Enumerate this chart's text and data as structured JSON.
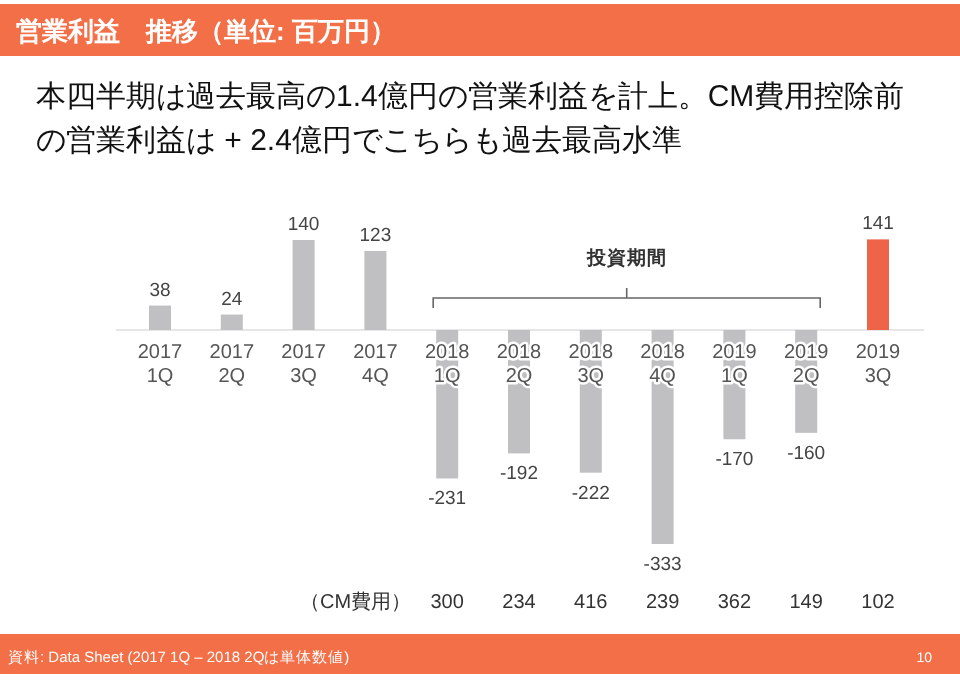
{
  "chart_data": {
    "type": "bar",
    "title": "営業利益　推移（単位: 百万円）",
    "subtitle": "本四半期は過去最高の1.4億円の営業利益を計上。CM費用控除前の営業利益は + 2.4億円でこちらも過去最高水準",
    "categories": [
      "2017 1Q",
      "2017 2Q",
      "2017 3Q",
      "2017 4Q",
      "2018 1Q",
      "2018 2Q",
      "2018 3Q",
      "2018 4Q",
      "2019 1Q",
      "2019 2Q",
      "2019 3Q"
    ],
    "values": [
      38,
      24,
      140,
      123,
      -231,
      -192,
      -222,
      -333,
      -170,
      -160,
      141
    ],
    "colors": [
      "#c0bfc1",
      "#c0bfc1",
      "#c0bfc1",
      "#c0bfc1",
      "#c0bfc1",
      "#c0bfc1",
      "#c0bfc1",
      "#c0bfc1",
      "#c0bfc1",
      "#c0bfc1",
      "#ee6448"
    ],
    "data_labels": true,
    "annotations": [
      "投資期間",
      "（CM費用）",
      "300",
      "234",
      "416",
      "239",
      "362",
      "149",
      "102",
      "資料: Data Sheet (2017 1Q – 2018 2Qは単体数値)",
      "10"
    ]
  }
}
